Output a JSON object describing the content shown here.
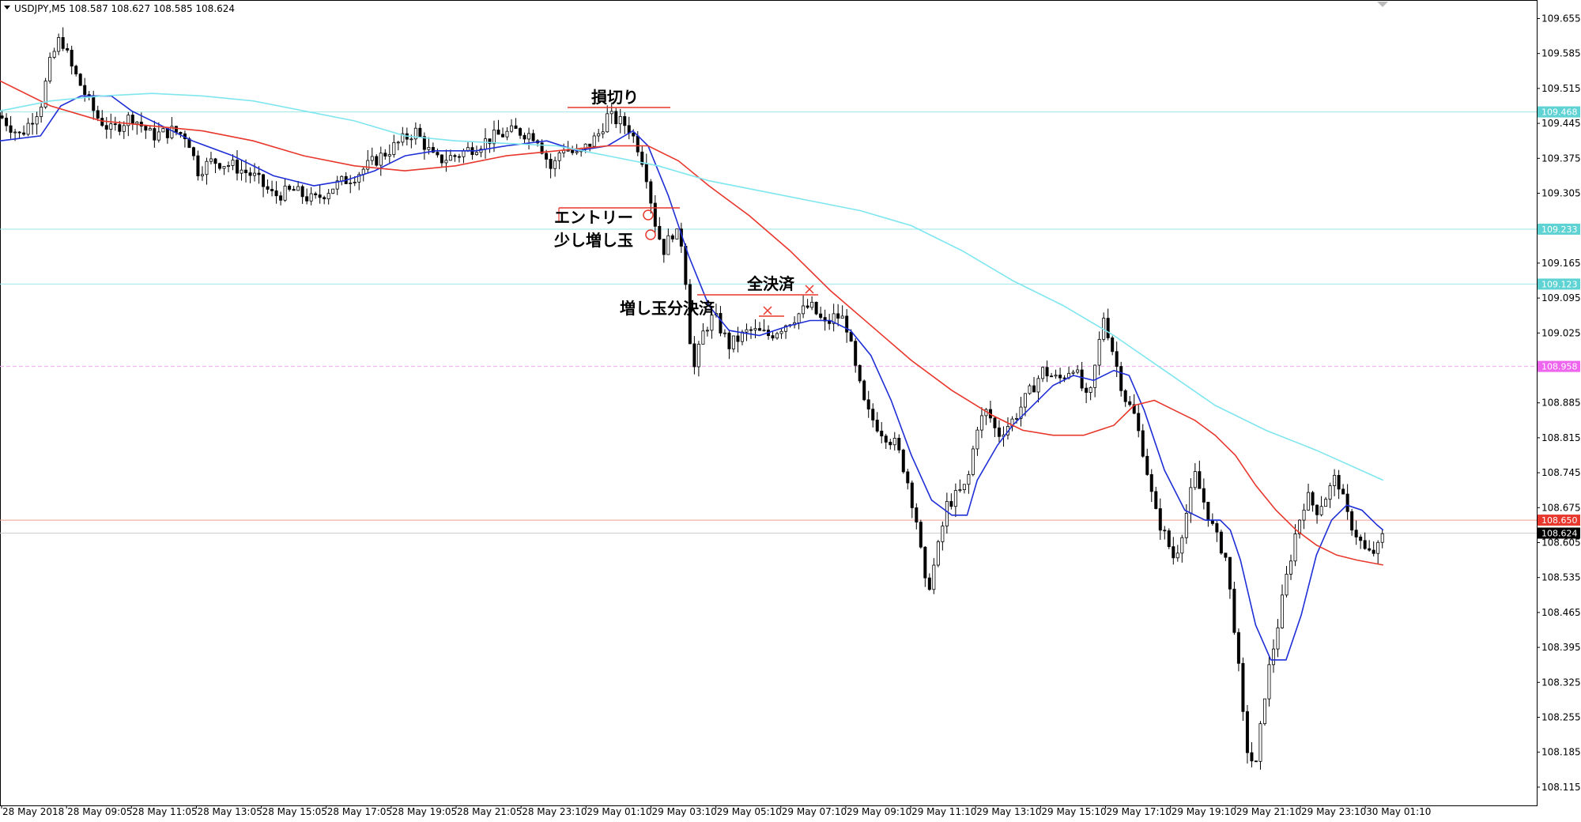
{
  "header": {
    "symbol_text": "USDJPY,M5  108.587 108.627 108.585 108.624"
  },
  "chart_data": {
    "type": "candlestick",
    "symbol": "USDJPY",
    "timeframe": "M5",
    "ohlc_last": {
      "open": 108.587,
      "high": 108.627,
      "low": 108.585,
      "close": 108.624
    },
    "x_ticks": [
      "28 May 2018",
      "28 May 09:05",
      "28 May 11:05",
      "28 May 13:05",
      "28 May 15:05",
      "28 May 17:05",
      "28 May 19:05",
      "28 May 21:05",
      "28 May 23:10",
      "29 May 01:10",
      "29 May 03:10",
      "29 May 05:10",
      "29 May 07:10",
      "29 May 09:10",
      "29 May 11:10",
      "29 May 13:10",
      "29 May 15:10",
      "29 May 17:10",
      "29 May 19:10",
      "29 May 21:10",
      "29 May 23:10",
      "30 May 01:10"
    ],
    "y_ticks": [
      "109.655",
      "109.585",
      "109.515",
      "109.445",
      "109.375",
      "109.305",
      "109.165",
      "109.095",
      "109.025",
      "108.885",
      "108.815",
      "108.745",
      "108.675",
      "108.605",
      "108.535",
      "108.465",
      "108.395",
      "108.325",
      "108.255",
      "108.185",
      "108.115"
    ],
    "ylim": [
      108.09,
      109.68
    ],
    "price_labels": [
      {
        "text": "109.468",
        "value": 109.468,
        "color": "#5fd3d3"
      },
      {
        "text": "109.233",
        "value": 109.233,
        "color": "#5fd3d3"
      },
      {
        "text": "109.123",
        "value": 109.123,
        "color": "#5fd3d3"
      },
      {
        "text": "108.958",
        "value": 108.958,
        "color": "#ee66ee"
      },
      {
        "text": "108.650",
        "value": 108.65,
        "color": "#e8372c"
      },
      {
        "text": "108.624",
        "value": 108.624,
        "color": "#000000"
      }
    ],
    "horizontal_lines": [
      {
        "value": 109.468,
        "color": "#9ee6ea",
        "style": "solid"
      },
      {
        "value": 109.233,
        "color": "#9ee6ea",
        "style": "solid"
      },
      {
        "value": 109.123,
        "color": "#9ee6ea",
        "style": "solid"
      },
      {
        "value": 108.958,
        "color": "#f3a7f0",
        "style": "dashed"
      },
      {
        "value": 108.65,
        "color": "#f29b92",
        "style": "solid"
      },
      {
        "value": 108.624,
        "color": "#cccccc",
        "style": "solid"
      }
    ],
    "price_path": [
      [
        0,
        109.46
      ],
      [
        20,
        109.42
      ],
      [
        40,
        109.48
      ],
      [
        50,
        109.57
      ],
      [
        60,
        109.62
      ],
      [
        70,
        109.56
      ],
      [
        80,
        109.52
      ],
      [
        95,
        109.46
      ],
      [
        110,
        109.43
      ],
      [
        130,
        109.46
      ],
      [
        150,
        109.42
      ],
      [
        170,
        109.43
      ],
      [
        185,
        109.42
      ],
      [
        195,
        109.35
      ],
      [
        210,
        109.37
      ],
      [
        230,
        109.36
      ],
      [
        250,
        109.34
      ],
      [
        270,
        109.3
      ],
      [
        290,
        109.31
      ],
      [
        310,
        109.29
      ],
      [
        330,
        109.32
      ],
      [
        350,
        109.34
      ],
      [
        370,
        109.37
      ],
      [
        390,
        109.4
      ],
      [
        410,
        109.43
      ],
      [
        430,
        109.37
      ],
      [
        450,
        109.38
      ],
      [
        470,
        109.4
      ],
      [
        490,
        109.42
      ],
      [
        510,
        109.43
      ],
      [
        530,
        109.42
      ],
      [
        545,
        109.35
      ],
      [
        555,
        109.4
      ],
      [
        570,
        109.38
      ],
      [
        590,
        109.42
      ],
      [
        600,
        109.46
      ],
      [
        620,
        109.44
      ],
      [
        632,
        109.39
      ],
      [
        640,
        109.33
      ],
      [
        645,
        109.26
      ],
      [
        655,
        109.19
      ],
      [
        665,
        109.23
      ],
      [
        675,
        109.2
      ],
      [
        680,
        109.04
      ],
      [
        685,
        108.95
      ],
      [
        695,
        109.03
      ],
      [
        705,
        109.06
      ],
      [
        720,
        109.0
      ],
      [
        740,
        109.03
      ],
      [
        760,
        109.02
      ],
      [
        780,
        109.05
      ],
      [
        800,
        109.08
      ],
      [
        815,
        109.04
      ],
      [
        825,
        109.06
      ],
      [
        835,
        109.05
      ],
      [
        845,
        108.95
      ],
      [
        855,
        108.87
      ],
      [
        870,
        108.83
      ],
      [
        885,
        108.8
      ],
      [
        895,
        108.74
      ],
      [
        905,
        108.65
      ],
      [
        915,
        108.5
      ],
      [
        925,
        108.58
      ],
      [
        935,
        108.68
      ],
      [
        945,
        108.7
      ],
      [
        955,
        108.72
      ],
      [
        965,
        108.84
      ],
      [
        975,
        108.87
      ],
      [
        985,
        108.82
      ],
      [
        1000,
        108.85
      ],
      [
        1015,
        108.9
      ],
      [
        1030,
        108.95
      ],
      [
        1045,
        108.93
      ],
      [
        1060,
        108.96
      ],
      [
        1075,
        108.88
      ],
      [
        1090,
        109.06
      ],
      [
        1100,
        108.98
      ],
      [
        1110,
        108.9
      ],
      [
        1120,
        108.86
      ],
      [
        1130,
        108.78
      ],
      [
        1140,
        108.67
      ],
      [
        1150,
        108.62
      ],
      [
        1160,
        108.57
      ],
      [
        1170,
        108.65
      ],
      [
        1180,
        108.74
      ],
      [
        1190,
        108.68
      ],
      [
        1200,
        108.62
      ],
      [
        1210,
        108.58
      ],
      [
        1220,
        108.42
      ],
      [
        1230,
        108.2
      ],
      [
        1240,
        108.15
      ],
      [
        1250,
        108.32
      ],
      [
        1260,
        108.42
      ],
      [
        1270,
        108.53
      ],
      [
        1280,
        108.63
      ],
      [
        1290,
        108.7
      ],
      [
        1300,
        108.67
      ],
      [
        1310,
        108.7
      ],
      [
        1320,
        108.74
      ],
      [
        1330,
        108.66
      ],
      [
        1340,
        108.62
      ],
      [
        1350,
        108.58
      ],
      [
        1360,
        108.59
      ],
      [
        1366,
        108.62
      ]
    ],
    "moving_averages": [
      {
        "color": "#1f2fd6",
        "points": [
          [
            0,
            109.41
          ],
          [
            40,
            109.42
          ],
          [
            60,
            109.48
          ],
          [
            80,
            109.5
          ],
          [
            110,
            109.5
          ],
          [
            130,
            109.47
          ],
          [
            160,
            109.44
          ],
          [
            190,
            109.41
          ],
          [
            230,
            109.38
          ],
          [
            270,
            109.34
          ],
          [
            310,
            109.32
          ],
          [
            340,
            109.33
          ],
          [
            370,
            109.35
          ],
          [
            400,
            109.38
          ],
          [
            430,
            109.39
          ],
          [
            470,
            109.39
          ],
          [
            500,
            109.4
          ],
          [
            540,
            109.41
          ],
          [
            570,
            109.39
          ],
          [
            600,
            109.4
          ],
          [
            625,
            109.43
          ],
          [
            640,
            109.4
          ],
          [
            660,
            109.3
          ],
          [
            680,
            109.18
          ],
          [
            700,
            109.08
          ],
          [
            720,
            109.03
          ],
          [
            750,
            109.02
          ],
          [
            780,
            109.04
          ],
          [
            800,
            109.05
          ],
          [
            820,
            109.05
          ],
          [
            840,
            109.03
          ],
          [
            860,
            108.98
          ],
          [
            880,
            108.89
          ],
          [
            900,
            108.78
          ],
          [
            920,
            108.69
          ],
          [
            940,
            108.66
          ],
          [
            955,
            108.66
          ],
          [
            965,
            108.73
          ],
          [
            985,
            108.8
          ],
          [
            1000,
            108.84
          ],
          [
            1020,
            108.88
          ],
          [
            1040,
            108.92
          ],
          [
            1060,
            108.94
          ],
          [
            1080,
            108.93
          ],
          [
            1100,
            108.95
          ],
          [
            1115,
            108.94
          ],
          [
            1130,
            108.87
          ],
          [
            1150,
            108.75
          ],
          [
            1170,
            108.67
          ],
          [
            1190,
            108.65
          ],
          [
            1205,
            108.65
          ],
          [
            1215,
            108.63
          ],
          [
            1225,
            108.57
          ],
          [
            1240,
            108.44
          ],
          [
            1255,
            108.37
          ],
          [
            1270,
            108.37
          ],
          [
            1285,
            108.46
          ],
          [
            1300,
            108.58
          ],
          [
            1315,
            108.65
          ],
          [
            1330,
            108.68
          ],
          [
            1345,
            108.67
          ],
          [
            1360,
            108.64
          ],
          [
            1366,
            108.63
          ]
        ]
      },
      {
        "color": "#e8372c",
        "points": [
          [
            0,
            109.53
          ],
          [
            50,
            109.48
          ],
          [
            100,
            109.45
          ],
          [
            150,
            109.44
          ],
          [
            200,
            109.43
          ],
          [
            250,
            109.41
          ],
          [
            300,
            109.38
          ],
          [
            350,
            109.36
          ],
          [
            400,
            109.35
          ],
          [
            450,
            109.36
          ],
          [
            500,
            109.38
          ],
          [
            550,
            109.39
          ],
          [
            600,
            109.4
          ],
          [
            640,
            109.4
          ],
          [
            670,
            109.37
          ],
          [
            700,
            109.32
          ],
          [
            740,
            109.26
          ],
          [
            780,
            109.19
          ],
          [
            820,
            109.11
          ],
          [
            860,
            109.04
          ],
          [
            900,
            108.97
          ],
          [
            940,
            108.91
          ],
          [
            980,
            108.86
          ],
          [
            1010,
            108.83
          ],
          [
            1040,
            108.82
          ],
          [
            1070,
            108.82
          ],
          [
            1100,
            108.84
          ],
          [
            1120,
            108.88
          ],
          [
            1140,
            108.89
          ],
          [
            1160,
            108.87
          ],
          [
            1180,
            108.85
          ],
          [
            1200,
            108.82
          ],
          [
            1220,
            108.78
          ],
          [
            1240,
            108.72
          ],
          [
            1260,
            108.67
          ],
          [
            1280,
            108.63
          ],
          [
            1300,
            108.6
          ],
          [
            1320,
            108.58
          ],
          [
            1340,
            108.57
          ],
          [
            1366,
            108.56
          ]
        ]
      },
      {
        "color": "#7fe6ef",
        "points": [
          [
            0,
            109.47
          ],
          [
            50,
            109.49
          ],
          [
            100,
            109.5
          ],
          [
            150,
            109.505
          ],
          [
            200,
            109.5
          ],
          [
            250,
            109.49
          ],
          [
            300,
            109.47
          ],
          [
            350,
            109.45
          ],
          [
            400,
            109.42
          ],
          [
            450,
            109.41
          ],
          [
            500,
            109.405
          ],
          [
            550,
            109.4
          ],
          [
            600,
            109.38
          ],
          [
            650,
            109.36
          ],
          [
            700,
            109.33
          ],
          [
            750,
            109.31
          ],
          [
            800,
            109.29
          ],
          [
            850,
            109.27
          ],
          [
            900,
            109.24
          ],
          [
            950,
            109.19
          ],
          [
            1000,
            109.13
          ],
          [
            1050,
            109.08
          ],
          [
            1100,
            109.02
          ],
          [
            1150,
            108.95
          ],
          [
            1200,
            108.88
          ],
          [
            1250,
            108.83
          ],
          [
            1300,
            108.79
          ],
          [
            1366,
            108.73
          ]
        ]
      }
    ],
    "annotations": [
      {
        "text": "損切り",
        "price": 109.475
      },
      {
        "text": "エントリー",
        "price": 109.28
      },
      {
        "text": "少し増し玉",
        "price": 109.24
      },
      {
        "text": "全決済",
        "price": 109.118
      },
      {
        "text": "増し玉分決済",
        "price": 109.06
      }
    ],
    "grid": false
  }
}
